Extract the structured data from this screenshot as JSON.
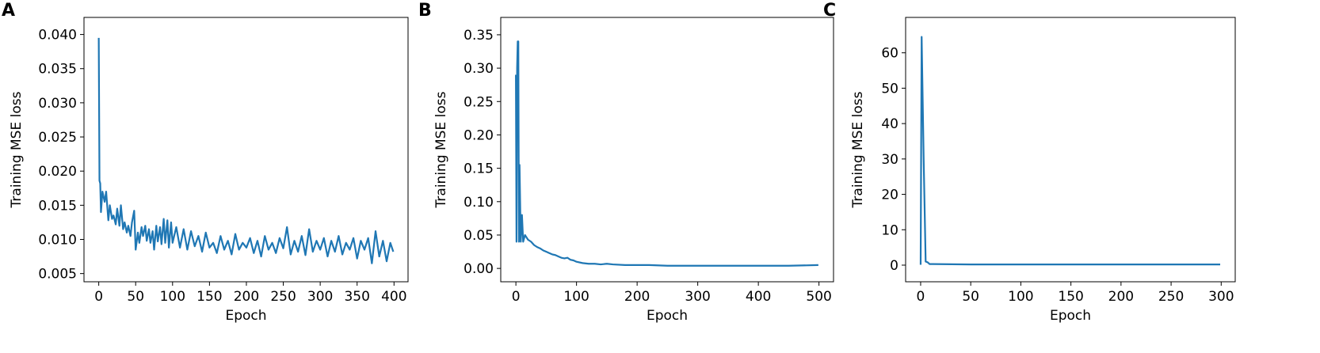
{
  "chart_data": [
    {
      "type": "line",
      "panel": "A",
      "xlabel": "Epoch",
      "ylabel": "Training MSE loss",
      "color": "#1f77b4",
      "xlim": [
        -20,
        419
      ],
      "ylim": [
        0.0038,
        0.0425
      ],
      "xticks": [
        0,
        50,
        100,
        150,
        200,
        250,
        300,
        350,
        400
      ],
      "yticks": [
        0.005,
        {
          "value": 0.01,
          "label": "0.010"
        },
        0.015,
        {
          "value": 0.02,
          "label": "0.020"
        },
        0.025,
        {
          "value": 0.03,
          "label": "0.030"
        },
        0.035,
        {
          "value": 0.04,
          "label": "0.040"
        }
      ],
      "x": [
        0,
        1,
        2,
        3,
        5,
        8,
        10,
        13,
        15,
        18,
        20,
        23,
        25,
        28,
        30,
        33,
        35,
        38,
        40,
        43,
        45,
        48,
        50,
        53,
        55,
        58,
        60,
        63,
        65,
        68,
        70,
        73,
        75,
        78,
        80,
        83,
        85,
        88,
        90,
        93,
        95,
        98,
        100,
        105,
        110,
        115,
        120,
        125,
        130,
        135,
        140,
        145,
        150,
        155,
        160,
        165,
        170,
        175,
        180,
        185,
        190,
        195,
        200,
        205,
        210,
        215,
        220,
        225,
        230,
        235,
        240,
        245,
        250,
        255,
        260,
        265,
        270,
        275,
        280,
        285,
        290,
        295,
        300,
        305,
        310,
        315,
        320,
        325,
        330,
        335,
        340,
        345,
        350,
        355,
        360,
        365,
        370,
        375,
        380,
        385,
        390,
        395,
        399
      ],
      "values": [
        0.0395,
        0.0186,
        0.0182,
        0.014,
        0.017,
        0.0155,
        0.017,
        0.0128,
        0.015,
        0.013,
        0.0135,
        0.0122,
        0.0145,
        0.012,
        0.015,
        0.0115,
        0.0125,
        0.011,
        0.012,
        0.0105,
        0.0125,
        0.0142,
        0.0085,
        0.011,
        0.0095,
        0.0118,
        0.0105,
        0.012,
        0.0098,
        0.0115,
        0.0095,
        0.0112,
        0.0085,
        0.012,
        0.0097,
        0.0118,
        0.0093,
        0.013,
        0.0095,
        0.0128,
        0.0088,
        0.0125,
        0.0095,
        0.0118,
        0.0088,
        0.0115,
        0.0085,
        0.0112,
        0.009,
        0.0105,
        0.0082,
        0.011,
        0.0088,
        0.0095,
        0.008,
        0.0105,
        0.0085,
        0.0098,
        0.0078,
        0.0108,
        0.0085,
        0.0095,
        0.0088,
        0.0102,
        0.008,
        0.0098,
        0.0075,
        0.0105,
        0.0085,
        0.0095,
        0.008,
        0.0102,
        0.0087,
        0.0118,
        0.0078,
        0.0098,
        0.0082,
        0.0105,
        0.0077,
        0.0115,
        0.0082,
        0.0098,
        0.0085,
        0.0102,
        0.0075,
        0.0098,
        0.0082,
        0.0105,
        0.0078,
        0.0095,
        0.0085,
        0.0102,
        0.0072,
        0.0098,
        0.0085,
        0.0102,
        0.0065,
        0.0112,
        0.0075,
        0.0098,
        0.0068,
        0.0095,
        0.0082
      ]
    },
    {
      "type": "line",
      "panel": "B",
      "xlabel": "Epoch",
      "ylabel": "Training MSE loss",
      "color": "#1f77b4",
      "xlim": [
        -25,
        524
      ],
      "ylim": [
        -0.02,
        0.376
      ],
      "xticks": [
        0,
        100,
        200,
        300,
        400,
        500
      ],
      "yticks": [
        {
          "value": 0,
          "label": "0.00"
        },
        0.05,
        {
          "value": 0.1,
          "label": "0.10"
        },
        0.15,
        {
          "value": 0.2,
          "label": "0.20"
        },
        0.25,
        {
          "value": 0.3,
          "label": "0.30"
        },
        0.35
      ],
      "x": [
        0,
        1,
        2,
        3,
        4,
        5,
        6,
        8,
        10,
        12,
        15,
        20,
        25,
        30,
        35,
        40,
        45,
        50,
        55,
        60,
        65,
        70,
        75,
        80,
        85,
        90,
        95,
        100,
        110,
        120,
        130,
        140,
        150,
        160,
        180,
        200,
        220,
        250,
        300,
        350,
        400,
        450,
        499
      ],
      "values": [
        0.29,
        0.04,
        0.3,
        0.34,
        0.34,
        0.04,
        0.155,
        0.04,
        0.08,
        0.04,
        0.05,
        0.043,
        0.04,
        0.035,
        0.032,
        0.03,
        0.027,
        0.025,
        0.023,
        0.021,
        0.02,
        0.018,
        0.016,
        0.015,
        0.016,
        0.013,
        0.012,
        0.01,
        0.008,
        0.007,
        0.007,
        0.006,
        0.007,
        0.006,
        0.005,
        0.005,
        0.005,
        0.004,
        0.004,
        0.004,
        0.004,
        0.004,
        0.005
      ]
    },
    {
      "type": "line",
      "panel": "C",
      "xlabel": "Epoch",
      "ylabel": "Training MSE loss",
      "color": "#1f77b4",
      "xlim": [
        -15,
        314
      ],
      "ylim": [
        -4.7,
        70
      ],
      "xticks": [
        0,
        50,
        100,
        150,
        200,
        250,
        300
      ],
      "yticks": [
        0,
        10,
        20,
        30,
        40,
        50,
        60
      ],
      "x": [
        0,
        1,
        3,
        5,
        7,
        9,
        12,
        50,
        100,
        200,
        299
      ],
      "values": [
        0.1,
        64.5,
        30,
        1,
        0.8,
        0.3,
        0.3,
        0.2,
        0.2,
        0.2,
        0.2
      ]
    }
  ]
}
